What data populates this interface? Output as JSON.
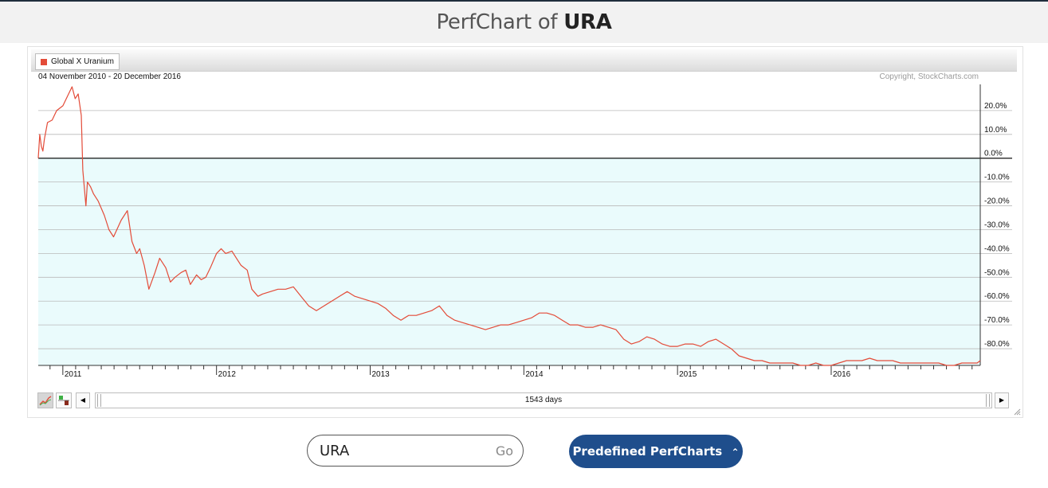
{
  "header": {
    "title_prefix": "PerfChart of",
    "title_symbol": "URA"
  },
  "legend": {
    "label": "Global X Uranium",
    "color": "#e34b38"
  },
  "chart_data": {
    "type": "line",
    "date_range": "04 November 2010 - 20 December 2016",
    "copyright": "Copyright, StockCharts.com",
    "ylim": [
      -87,
      31
    ],
    "y_ticks": [
      20,
      10,
      0,
      -10,
      -20,
      -30,
      -40,
      -50,
      -60,
      -70,
      -80
    ],
    "y_tick_labels": [
      "20.0%",
      "10.0%",
      "0.0%",
      "-10.0%",
      "-20.0%",
      "-30.0%",
      "-40.0%",
      "-50.0%",
      "-60.0%",
      "-70.0%",
      "-80.0%"
    ],
    "x_range": [
      2010.84,
      2016.97
    ],
    "x_ticks": [
      2011,
      2012,
      2013,
      2014,
      2015,
      2016
    ],
    "x_tick_labels": [
      "2011",
      "2012",
      "2013",
      "2014",
      "2015",
      "2016"
    ],
    "grid": true,
    "series": [
      {
        "name": "Global X Uranium",
        "color": "#e34b38",
        "x": [
          2010.84,
          2010.85,
          2010.86,
          2010.87,
          2010.88,
          2010.9,
          2010.93,
          2010.96,
          2011.0,
          2011.03,
          2011.06,
          2011.08,
          2011.1,
          2011.12,
          2011.13,
          2011.15,
          2011.16,
          2011.18,
          2011.2,
          2011.23,
          2011.27,
          2011.3,
          2011.33,
          2011.38,
          2011.42,
          2011.45,
          2011.48,
          2011.5,
          2011.53,
          2011.56,
          2011.6,
          2011.63,
          2011.67,
          2011.7,
          2011.73,
          2011.77,
          2011.8,
          2011.83,
          2011.87,
          2011.9,
          2011.93,
          2011.96,
          2012.0,
          2012.03,
          2012.06,
          2012.1,
          2012.13,
          2012.16,
          2012.2,
          2012.23,
          2012.27,
          2012.3,
          2012.35,
          2012.4,
          2012.45,
          2012.5,
          2012.55,
          2012.6,
          2012.65,
          2012.7,
          2012.75,
          2012.8,
          2012.85,
          2012.9,
          2012.95,
          2013.0,
          2013.05,
          2013.1,
          2013.15,
          2013.2,
          2013.25,
          2013.3,
          2013.35,
          2013.4,
          2013.45,
          2013.5,
          2013.55,
          2013.6,
          2013.65,
          2013.7,
          2013.75,
          2013.8,
          2013.85,
          2013.9,
          2013.95,
          2014.0,
          2014.05,
          2014.1,
          2014.15,
          2014.2,
          2014.25,
          2014.3,
          2014.35,
          2014.4,
          2014.45,
          2014.5,
          2014.55,
          2014.6,
          2014.65,
          2014.7,
          2014.75,
          2014.8,
          2014.85,
          2014.9,
          2014.95,
          2015.0,
          2015.05,
          2015.1,
          2015.15,
          2015.2,
          2015.25,
          2015.3,
          2015.35,
          2015.4,
          2015.45,
          2015.5,
          2015.55,
          2015.6,
          2015.65,
          2015.7,
          2015.75,
          2015.8,
          2015.85,
          2015.9,
          2015.95,
          2016.0,
          2016.05,
          2016.1,
          2016.15,
          2016.2,
          2016.25,
          2016.3,
          2016.35,
          2016.4,
          2016.45,
          2016.5,
          2016.55,
          2016.6,
          2016.65,
          2016.7,
          2016.75,
          2016.8,
          2016.85,
          2016.9,
          2016.95,
          2016.97
        ],
        "y": [
          0,
          10,
          5,
          3,
          8,
          15,
          16,
          20,
          22,
          26,
          30,
          25,
          27,
          18,
          -5,
          -20,
          -10,
          -12,
          -15,
          -18,
          -24,
          -30,
          -33,
          -26,
          -22,
          -35,
          -40,
          -38,
          -45,
          -55,
          -48,
          -42,
          -46,
          -52,
          -50,
          -48,
          -47,
          -53,
          -49,
          -51,
          -50,
          -46,
          -40,
          -38,
          -40,
          -39,
          -42,
          -45,
          -47,
          -55,
          -58,
          -57,
          -56,
          -55,
          -55,
          -54,
          -58,
          -62,
          -64,
          -62,
          -60,
          -58,
          -56,
          -58,
          -59,
          -60,
          -61,
          -63,
          -66,
          -68,
          -66,
          -66,
          -65,
          -64,
          -62,
          -66,
          -68,
          -69,
          -70,
          -71,
          -72,
          -71,
          -70,
          -70,
          -69,
          -68,
          -67,
          -65,
          -65,
          -66,
          -68,
          -70,
          -70,
          -71,
          -71,
          -70,
          -71,
          -72,
          -76,
          -78,
          -77,
          -75,
          -76,
          -78,
          -79,
          -79,
          -78,
          -78,
          -79,
          -77,
          -76,
          -78,
          -80,
          -83,
          -84,
          -85,
          -85,
          -86,
          -86,
          -86,
          -86,
          -87,
          -87,
          -86,
          -87,
          -87,
          -86,
          -85,
          -85,
          -85,
          -84,
          -85,
          -85,
          -85,
          -86,
          -86,
          -86,
          -86,
          -86,
          -86,
          -87,
          -87,
          -86,
          -86,
          -86,
          -85
        ]
      }
    ]
  },
  "scrollbar": {
    "days_label": "1543 days"
  },
  "search": {
    "value": "URA",
    "go_label": "Go"
  },
  "predefined": {
    "label": "Predefined PerfCharts"
  }
}
